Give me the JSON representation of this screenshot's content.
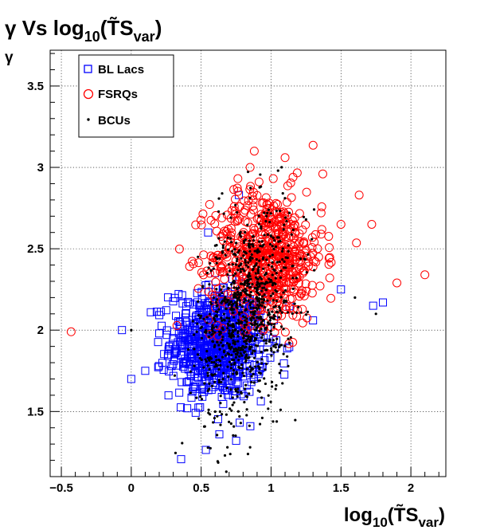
{
  "chart_data": {
    "type": "scatter",
    "title": "γ Vs log₁₀(T̃S_var)",
    "title_parts": {
      "gamma": "γ",
      "vs": " Vs log",
      "sub10": "10",
      "ts": "T̃S",
      "var": "var"
    },
    "xlabel_parts": {
      "log": "log",
      "sub10": "10",
      "ts": "T̃S",
      "var": "var"
    },
    "ylabel": "γ",
    "xlim": [
      -0.58,
      2.25
    ],
    "ylim": [
      1.1,
      3.72
    ],
    "xticks": [
      -0.5,
      0,
      0.5,
      1,
      1.5,
      2
    ],
    "xtick_labels": [
      "−0.5",
      "0",
      "0.5",
      "1",
      "1.5",
      "2"
    ],
    "yticks": [
      1.5,
      2,
      2.5,
      3,
      3.5
    ],
    "ytick_labels": [
      "1.5",
      "2",
      "2.5",
      "3",
      "3.5"
    ],
    "grid": true,
    "legend_position": "top-left",
    "series": [
      {
        "name": "BL Lacs",
        "marker": "open-square",
        "color": "#0000ff",
        "centroid": [
          0.62,
          1.92
        ],
        "spread": [
          0.17,
          0.17
        ],
        "n_points": 720,
        "example_points": [
          [
            0.0,
            1.7
          ],
          [
            0.1,
            1.75
          ],
          [
            0.14,
            2.11
          ],
          [
            0.2,
            1.98
          ],
          [
            0.4,
            1.52
          ],
          [
            0.52,
            1.62
          ],
          [
            0.55,
            2.6
          ],
          [
            0.63,
            1.36
          ],
          [
            0.75,
            1.32
          ],
          [
            0.77,
            2.83
          ],
          [
            0.92,
            1.88
          ],
          [
            1.3,
            2.06
          ],
          [
            1.5,
            2.25
          ],
          [
            1.73,
            2.15
          ],
          [
            1.8,
            2.17
          ]
        ]
      },
      {
        "name": "FSRQs",
        "marker": "open-circle",
        "color": "#ff0000",
        "centroid": [
          0.97,
          2.45
        ],
        "spread": [
          0.2,
          0.2
        ],
        "n_points": 640,
        "example_points": [
          [
            -0.43,
            1.99
          ],
          [
            0.6,
            2.35
          ],
          [
            0.85,
            3.0
          ],
          [
            0.88,
            3.1
          ],
          [
            1.0,
            2.02
          ],
          [
            1.1,
            3.06
          ],
          [
            1.25,
            2.24
          ],
          [
            1.37,
            2.96
          ],
          [
            1.5,
            2.65
          ],
          [
            1.63,
            2.83
          ],
          [
            1.72,
            2.65
          ],
          [
            1.9,
            2.29
          ],
          [
            2.1,
            2.34
          ]
        ]
      },
      {
        "name": "BCUs",
        "marker": "dot",
        "color": "#000000",
        "centroid": [
          0.82,
          2.1
        ],
        "spread": [
          0.17,
          0.3
        ],
        "n_points": 900,
        "example_points": [
          [
            0.0,
            2.0
          ],
          [
            0.45,
            1.78
          ],
          [
            0.65,
            2.84
          ],
          [
            0.67,
            1.23
          ],
          [
            0.68,
            1.13
          ],
          [
            0.85,
            1.28
          ],
          [
            1.05,
            2.98
          ],
          [
            1.25,
            2.68
          ],
          [
            1.6,
            2.2
          ],
          [
            1.75,
            2.1
          ]
        ]
      }
    ]
  }
}
